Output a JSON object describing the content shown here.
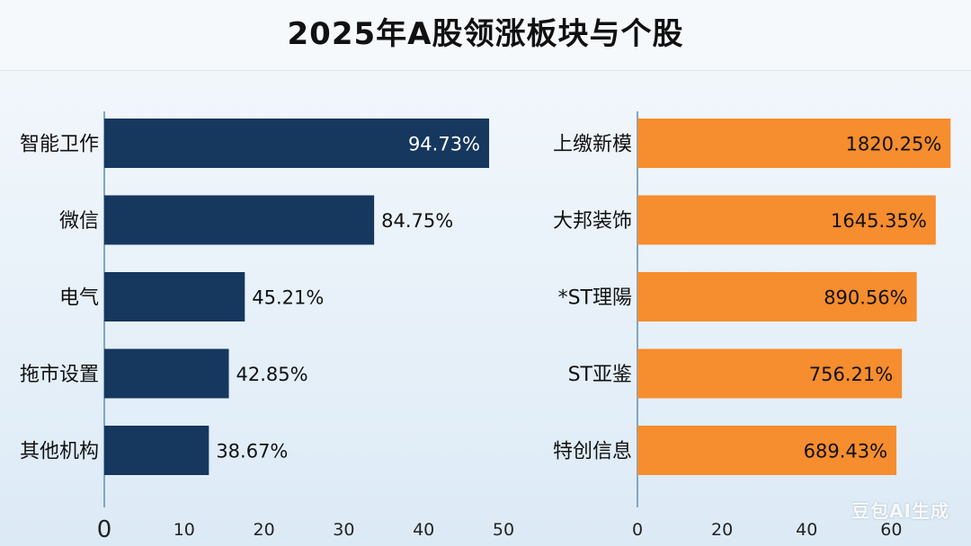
{
  "title": "2025年A股领涨板块与个股",
  "watermark": "豆包AI生成",
  "chart_data": [
    {
      "type": "bar",
      "orientation": "horizontal",
      "categories": [
        "智能卫作",
        "微信",
        "电气",
        "拖市设置",
        "其他机构"
      ],
      "values": [
        48.2,
        33.8,
        17.6,
        15.6,
        13.1
      ],
      "data_labels": [
        "94.73%",
        "84.75%",
        "45.21%",
        "42.85%",
        "38.67%"
      ],
      "xlim": [
        0,
        50
      ],
      "xticks": [
        10,
        20,
        30,
        40,
        50
      ],
      "origin_label": "0",
      "color": "#16375e",
      "label_color_inside": "#ffffff",
      "label_color_outside": "#111111"
    },
    {
      "type": "bar",
      "orientation": "horizontal",
      "categories": [
        "上缴新模",
        "大邦装饰",
        "*ST理陽",
        "ST亚鉴",
        "特创信息"
      ],
      "values": [
        74,
        70.5,
        66,
        62.5,
        61.2
      ],
      "data_labels": [
        "1820.25%",
        "1645.35%",
        "890.56%",
        "756.21%",
        "689.43%"
      ],
      "xlim": [
        0,
        75
      ],
      "xticks": [
        0,
        20,
        40,
        60
      ],
      "color": "#f68d2e",
      "label_color_inside": "#111111"
    }
  ]
}
